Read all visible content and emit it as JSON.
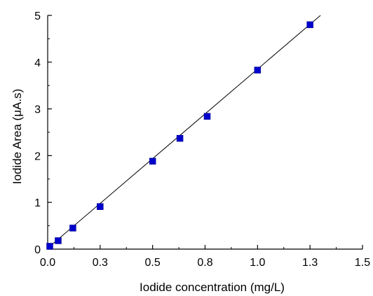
{
  "chart_data": {
    "type": "scatter",
    "title": "",
    "xlabel": "Iodide concentration (mg/L)",
    "ylabel": "Iodide Area (μA.s)",
    "xlim": [
      0.0,
      1.5
    ],
    "ylim": [
      0,
      5
    ],
    "x_ticks": [
      "0.0",
      "0.3",
      "0.5",
      "0.8",
      "1.0",
      "1.3",
      "1.5"
    ],
    "x_tick_values": [
      0.0,
      0.25,
      0.5,
      0.75,
      1.0,
      1.25,
      1.5
    ],
    "y_ticks": [
      "0",
      "1",
      "2",
      "3",
      "4",
      "5"
    ],
    "y_tick_values": [
      0,
      1,
      2,
      3,
      4,
      5
    ],
    "grid": false,
    "series": [
      {
        "marker": "square",
        "color": "#0000cc",
        "x": [
          0.01,
          0.05,
          0.12,
          0.25,
          0.5,
          0.63,
          0.76,
          1.0,
          1.25
        ],
        "y": [
          0.06,
          0.18,
          0.45,
          0.91,
          1.88,
          2.37,
          2.84,
          3.83,
          4.8
        ]
      }
    ],
    "fit_line": {
      "color": "#000000",
      "x": [
        0.0,
        1.3
      ],
      "y": [
        0.02,
        5.0
      ]
    }
  }
}
